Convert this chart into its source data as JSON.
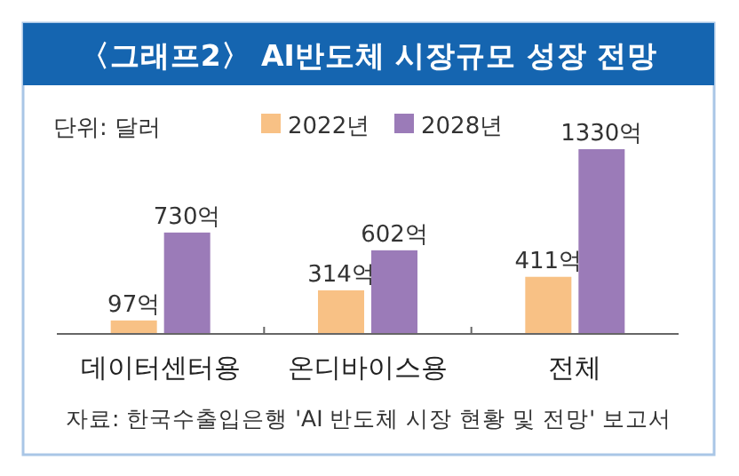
{
  "chart_data": {
    "type": "bar",
    "title": "〈그래프2〉 AI반도체 시장규모 성장 전망",
    "subtitle": "단위: 달러",
    "categories": [
      "데이터센터용",
      "온디바이스용",
      "전체"
    ],
    "series": [
      {
        "name": "2022년",
        "color": "#f8c185",
        "values": [
          97,
          314,
          411
        ],
        "value_labels": [
          "97억",
          "314억",
          "411억"
        ]
      },
      {
        "name": "2028년",
        "color": "#9b7bb8",
        "values": [
          730,
          602,
          1330
        ],
        "value_labels": [
          "730억",
          "602억",
          "1330억"
        ]
      }
    ],
    "legend": "top",
    "annotations": [
      "자료: 한국수출입은행 'AI 반도체 시장 현황 및 전망' 보고서"
    ]
  }
}
